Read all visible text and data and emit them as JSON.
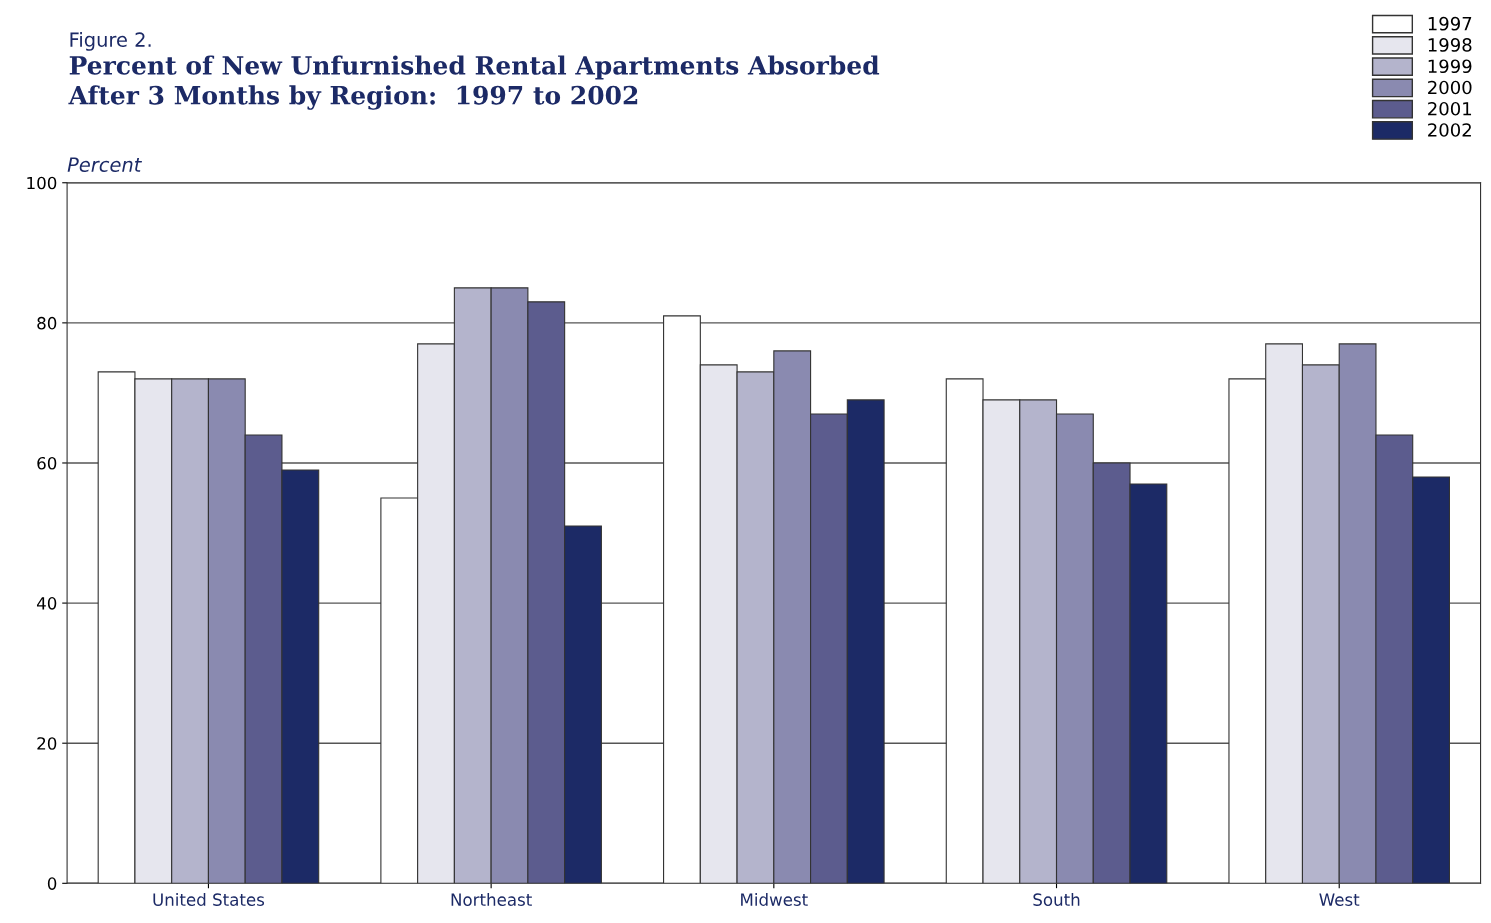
{
  "chart_data": {
    "type": "bar",
    "subtitle": "Figure 2.",
    "title": "Percent of New Unfurnished Rental Apartments Absorbed\nAfter 3 Months by Region:  1997 to 2002",
    "ylabel": "Percent",
    "categories": [
      "United States",
      "Northeast",
      "Midwest",
      "South",
      "West"
    ],
    "series": [
      {
        "name": "1997",
        "color": "#ffffff",
        "values": [
          73,
          55,
          81,
          72,
          72
        ]
      },
      {
        "name": "1998",
        "color": "#e6e6ee",
        "values": [
          72,
          77,
          74,
          69,
          77
        ]
      },
      {
        "name": "1999",
        "color": "#b4b4cc",
        "values": [
          72,
          85,
          73,
          69,
          74
        ]
      },
      {
        "name": "2000",
        "color": "#8a8ab0",
        "values": [
          72,
          85,
          76,
          67,
          77
        ]
      },
      {
        "name": "2001",
        "color": "#5c5c8e",
        "values": [
          64,
          83,
          67,
          60,
          64
        ]
      },
      {
        "name": "2002",
        "color": "#1c2a66",
        "values": [
          59,
          51,
          69,
          57,
          58
        ]
      }
    ],
    "ylim": [
      0,
      100
    ],
    "yticks": [
      0,
      20,
      40,
      60,
      80,
      100
    ],
    "grid": "y",
    "legend": "top right"
  }
}
